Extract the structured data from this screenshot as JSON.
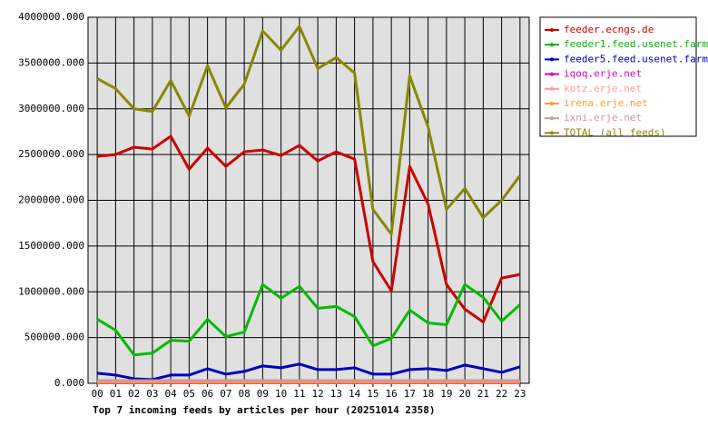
{
  "chart_data": {
    "type": "line",
    "title": "Top 7 incoming feeds by articles per hour (20251014 2358)",
    "categories": [
      "00",
      "01",
      "02",
      "03",
      "04",
      "05",
      "06",
      "07",
      "08",
      "09",
      "10",
      "11",
      "12",
      "13",
      "14",
      "15",
      "16",
      "17",
      "18",
      "19",
      "20",
      "21",
      "22",
      "23"
    ],
    "ylim": [
      0,
      4000000
    ],
    "yticks": [
      {
        "value": 0,
        "label": "0.000"
      },
      {
        "value": 500000,
        "label": "500000.000"
      },
      {
        "value": 1000000,
        "label": "1000000.000"
      },
      {
        "value": 1500000,
        "label": "1500000.000"
      },
      {
        "value": 2000000,
        "label": "2000000.000"
      },
      {
        "value": 2500000,
        "label": "2500000.000"
      },
      {
        "value": 3000000,
        "label": "3000000.000"
      },
      {
        "value": 3500000,
        "label": "3500000.000"
      },
      {
        "value": 4000000,
        "label": "4000000.000"
      }
    ],
    "grid": true,
    "legend": "right",
    "series": [
      {
        "name": "feeder.ecngs.de",
        "color": "#cc0000",
        "values": [
          2480000,
          2500000,
          2580000,
          2560000,
          2700000,
          2340000,
          2570000,
          2370000,
          2530000,
          2550000,
          2490000,
          2600000,
          2430000,
          2530000,
          2450000,
          1330000,
          1010000,
          2370000,
          1960000,
          1080000,
          810000,
          670000,
          1150000,
          1190000
        ]
      },
      {
        "name": "feeder1.feed.usenet.farm",
        "color": "#00bb00",
        "values": [
          700000,
          580000,
          310000,
          330000,
          470000,
          460000,
          700000,
          510000,
          560000,
          1080000,
          930000,
          1060000,
          820000,
          840000,
          730000,
          410000,
          490000,
          800000,
          660000,
          640000,
          1080000,
          940000,
          680000,
          860000
        ]
      },
      {
        "name": "feeder5.feed.usenet.farm",
        "color": "#0000bb",
        "values": [
          110000,
          90000,
          50000,
          40000,
          90000,
          90000,
          160000,
          100000,
          130000,
          190000,
          170000,
          210000,
          150000,
          150000,
          170000,
          100000,
          100000,
          150000,
          160000,
          140000,
          200000,
          160000,
          120000,
          180000
        ]
      },
      {
        "name": "iqoq.erje.net",
        "color": "#cc00cc",
        "values": [
          5000,
          5000,
          5000,
          5000,
          5000,
          5000,
          5000,
          5000,
          5000,
          5000,
          5000,
          5000,
          5000,
          5000,
          5000,
          5000,
          5000,
          5000,
          5000,
          5000,
          5000,
          5000,
          5000,
          5000
        ]
      },
      {
        "name": "kotz.erje.net",
        "color": "#ff9999",
        "values": [
          20000,
          20000,
          20000,
          20000,
          20000,
          20000,
          20000,
          20000,
          20000,
          20000,
          20000,
          20000,
          20000,
          20000,
          20000,
          20000,
          20000,
          20000,
          20000,
          20000,
          20000,
          20000,
          20000,
          20000
        ]
      },
      {
        "name": "irena.erje.net",
        "color": "#ff9933",
        "values": [
          10000,
          10000,
          10000,
          10000,
          10000,
          10000,
          10000,
          10000,
          10000,
          10000,
          10000,
          10000,
          10000,
          10000,
          10000,
          10000,
          10000,
          10000,
          10000,
          10000,
          10000,
          10000,
          10000,
          10000
        ]
      },
      {
        "name": "ixni.erje.net",
        "color": "#cc9999",
        "values": [
          30000,
          30000,
          30000,
          30000,
          30000,
          30000,
          30000,
          30000,
          30000,
          30000,
          30000,
          30000,
          30000,
          30000,
          30000,
          30000,
          30000,
          30000,
          30000,
          30000,
          30000,
          30000,
          30000,
          30000
        ]
      },
      {
        "name": "TOTAL (all feeds)",
        "color": "#888800",
        "values": [
          3330000,
          3220000,
          3000000,
          2970000,
          3310000,
          2920000,
          3470000,
          3010000,
          3270000,
          3850000,
          3640000,
          3900000,
          3440000,
          3560000,
          3390000,
          1900000,
          1630000,
          3360000,
          2800000,
          1900000,
          2130000,
          1810000,
          2000000,
          2270000
        ]
      }
    ]
  }
}
